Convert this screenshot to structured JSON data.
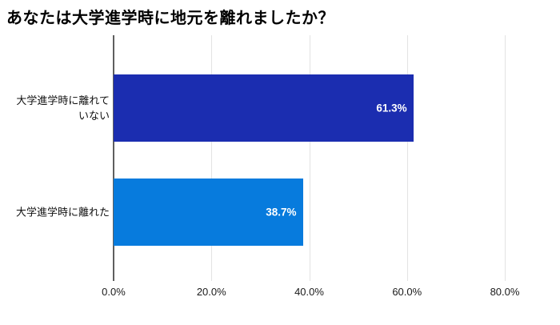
{
  "chart_data": {
    "type": "bar",
    "orientation": "horizontal",
    "title": "あなたは大学進学時に地元を離れましたか？",
    "categories": [
      "大学進学時に離れて\nいない",
      "大学進学時に離れた"
    ],
    "values": [
      61.3,
      38.7
    ],
    "value_labels": [
      "61.3%",
      "38.7%"
    ],
    "bar_colors": [
      "#1b2db0",
      "#077bdd"
    ],
    "xlabel": "",
    "ylabel": "",
    "xlim": [
      0,
      80
    ],
    "x_ticks": [
      0,
      20,
      40,
      60,
      80
    ],
    "x_tick_labels": [
      "0.0%",
      "20.0%",
      "40.0%",
      "60.0%",
      "80.0%"
    ],
    "grid": true,
    "legend": "none",
    "value_label_color": "#ffffff",
    "gridline_color": "#e3e3e3",
    "axis_line_color": "#5f5f5f",
    "background_color": "#ffffff"
  }
}
